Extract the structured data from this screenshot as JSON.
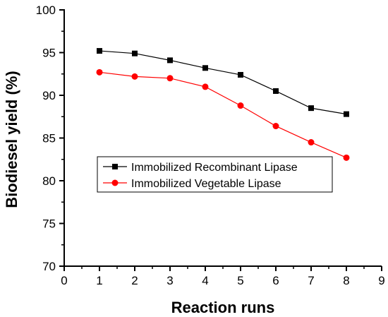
{
  "chart_data": {
    "type": "line",
    "xlabel": "Reaction runs",
    "ylabel": "Biodiesel yield (%)",
    "xlim": [
      0,
      9
    ],
    "ylim": [
      70,
      100
    ],
    "xticks": [
      "0",
      "1",
      "2",
      "3",
      "4",
      "5",
      "6",
      "7",
      "8",
      "9"
    ],
    "yticks": [
      "70",
      "75",
      "80",
      "85",
      "90",
      "95",
      "100"
    ],
    "grid": false,
    "legend_position": "center-left",
    "x": [
      1,
      2,
      3,
      4,
      5,
      6,
      7,
      8
    ],
    "series": [
      {
        "name": "Immobilized Recombinant Lipase",
        "color": "#000000",
        "marker": "square",
        "values": [
          95.2,
          94.9,
          94.1,
          93.2,
          92.4,
          90.5,
          88.5,
          87.8
        ]
      },
      {
        "name": "Immobilized Vegetable Lipase",
        "color": "#ff0000",
        "marker": "circle",
        "values": [
          92.7,
          92.2,
          92.0,
          91.0,
          88.8,
          86.4,
          84.5,
          82.7
        ]
      }
    ]
  }
}
